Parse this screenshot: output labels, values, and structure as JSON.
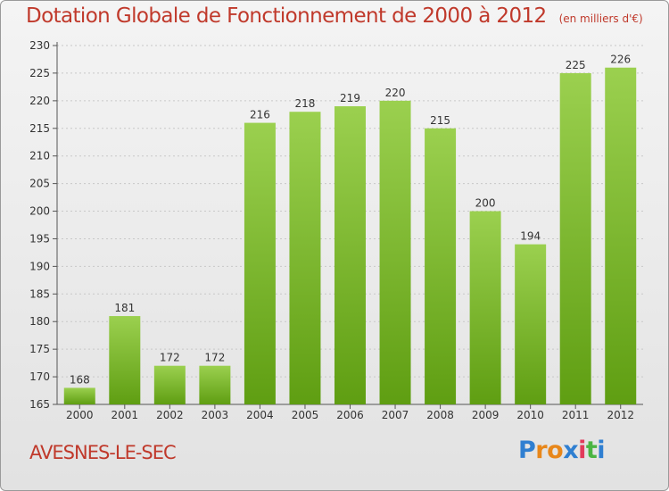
{
  "header": {
    "title": "Dotation Globale de Fonctionnement de 2000 à 2012",
    "subtitle": "(en milliers d'€)"
  },
  "footer": {
    "commune": "AVESNES-LE-SEC",
    "logo_text": "Proxiti"
  },
  "colors": {
    "bar_light": "#9bd04f",
    "bar_dark": "#5f9e12",
    "title": "#c0392b",
    "grid": "#c8c8c8"
  },
  "chart_data": {
    "type": "bar",
    "title": "Dotation Globale de Fonctionnement de 2000 à 2012",
    "subtitle": "(en milliers d'€)",
    "categories": [
      "2000",
      "2001",
      "2002",
      "2003",
      "2004",
      "2005",
      "2006",
      "2007",
      "2008",
      "2009",
      "2010",
      "2011",
      "2012"
    ],
    "values": [
      168,
      181,
      172,
      172,
      216,
      218,
      219,
      220,
      215,
      200,
      194,
      225,
      226
    ],
    "ylim": [
      165,
      230
    ],
    "yticks": [
      165,
      170,
      175,
      180,
      185,
      190,
      195,
      200,
      205,
      210,
      215,
      220,
      225,
      230
    ],
    "grid": true,
    "legend": "none"
  }
}
